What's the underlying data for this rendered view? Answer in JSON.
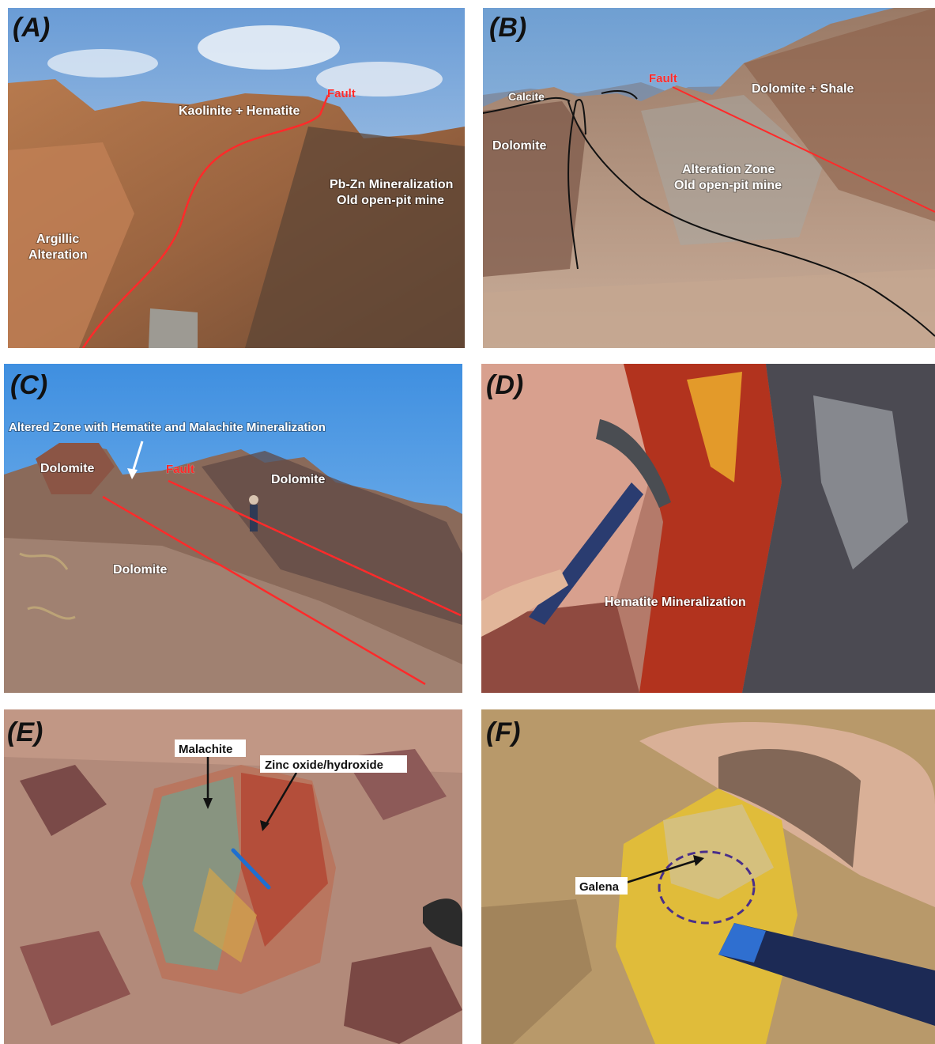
{
  "panels": {
    "a": {
      "label": "(A)",
      "fault": "Fault",
      "kaolinite": "Kaolinite + Hematite",
      "pbzn_1": "Pb-Zn Mineralization",
      "pbzn_2": "Old open-pit mine",
      "argillic_1": "Argillic",
      "argillic_2": "Alteration"
    },
    "b": {
      "label": "(B)",
      "fault": "Fault",
      "calcite": "Calcite",
      "dolomite": "Dolomite",
      "dolomite_shale": "Dolomite + Shale",
      "alteration_1": "Alteration Zone",
      "alteration_2": "Old open-pit mine"
    },
    "c": {
      "label": "(C)",
      "altered_zone": "Altered Zone with Hematite and Malachite Mineralization",
      "fault": "Fault",
      "dolomite_left": "Dolomite",
      "dolomite_right": "Dolomite",
      "dolomite_bottom": "Dolomite"
    },
    "d": {
      "label": "(D)",
      "hematite": "Hematite Mineralization"
    },
    "e": {
      "label": "(E)",
      "malachite": "Malachite",
      "zinc": "Zinc oxide/hydroxide"
    },
    "f": {
      "label": "(F)",
      "galena": "Galena"
    }
  },
  "colors": {
    "fault_line": "#ff2a2a",
    "contact_line": "#111111",
    "annotation_text": "#ffffff"
  }
}
